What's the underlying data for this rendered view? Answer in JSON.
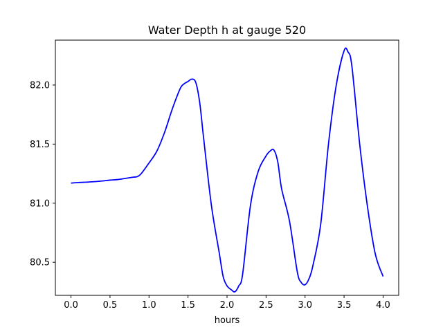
{
  "chart_data": {
    "type": "line",
    "title": "Water Depth h at gauge 520",
    "xlabel": "hours",
    "ylabel": "",
    "xlim": [
      -0.2,
      4.2
    ],
    "ylim": [
      80.22,
      82.38
    ],
    "xticks": [
      0.0,
      0.5,
      1.0,
      1.5,
      2.0,
      2.5,
      3.0,
      3.5,
      4.0
    ],
    "xtick_labels": [
      "0.0",
      "0.5",
      "1.0",
      "1.5",
      "2.0",
      "2.5",
      "3.0",
      "3.5",
      "4.0"
    ],
    "yticks": [
      80.5,
      81.0,
      81.5,
      82.0
    ],
    "ytick_labels": [
      "80.5",
      "81.0",
      "81.5",
      "82.0"
    ],
    "grid": false,
    "line_color": "#0000ff",
    "series": [
      {
        "x": [
          0.0,
          0.1,
          0.2,
          0.3,
          0.4,
          0.5,
          0.6,
          0.7,
          0.8,
          0.85,
          0.9,
          1.0,
          1.1,
          1.2,
          1.3,
          1.4,
          1.45,
          1.5,
          1.55,
          1.6,
          1.65,
          1.7,
          1.8,
          1.9,
          1.95,
          2.0,
          2.05,
          2.1,
          2.15,
          2.2,
          2.3,
          2.4,
          2.5,
          2.55,
          2.6,
          2.65,
          2.7,
          2.8,
          2.9,
          2.95,
          3.0,
          3.05,
          3.1,
          3.2,
          3.3,
          3.4,
          3.5,
          3.55,
          3.6,
          3.7,
          3.8,
          3.9,
          4.0
        ],
        "y": [
          81.17,
          81.175,
          81.178,
          81.182,
          81.188,
          81.195,
          81.2,
          81.21,
          81.22,
          81.225,
          81.25,
          81.34,
          81.44,
          81.6,
          81.8,
          81.97,
          82.01,
          82.03,
          82.05,
          82.02,
          81.85,
          81.55,
          80.98,
          80.58,
          80.38,
          80.3,
          80.27,
          80.25,
          80.3,
          80.4,
          80.98,
          81.27,
          81.4,
          81.44,
          81.45,
          81.35,
          81.12,
          80.85,
          80.42,
          80.33,
          80.31,
          80.36,
          80.47,
          80.82,
          81.5,
          82.0,
          82.29,
          82.28,
          82.16,
          81.5,
          80.97,
          80.57,
          80.38
        ]
      }
    ]
  }
}
